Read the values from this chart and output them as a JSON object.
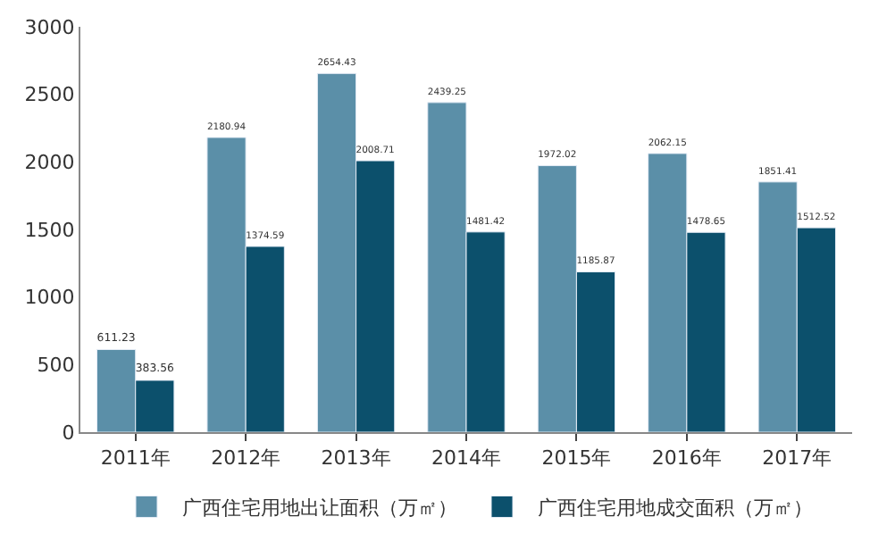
{
  "chart_data": {
    "type": "bar",
    "categories": [
      "2011年",
      "2012年",
      "2013年",
      "2014年",
      "2015年",
      "2016年",
      "2017年"
    ],
    "series": [
      {
        "name": "广西住宅用地出让面积（万㎡）",
        "color": "#5b8fa8",
        "values": [
          611.23,
          2180.94,
          2654.43,
          2439.25,
          1972.02,
          2062.15,
          1851.41
        ]
      },
      {
        "name": "广西住宅用地成交面积（万㎡）",
        "color": "#0c506c",
        "values": [
          383.56,
          1374.59,
          2008.71,
          1481.42,
          1185.87,
          1478.65,
          1512.52
        ]
      }
    ],
    "ylim": [
      0,
      3000
    ],
    "yticks": [
      0,
      500,
      1000,
      1500,
      2000,
      2500,
      3000
    ],
    "data_labels": true,
    "grid": false,
    "legend": "bottom"
  }
}
